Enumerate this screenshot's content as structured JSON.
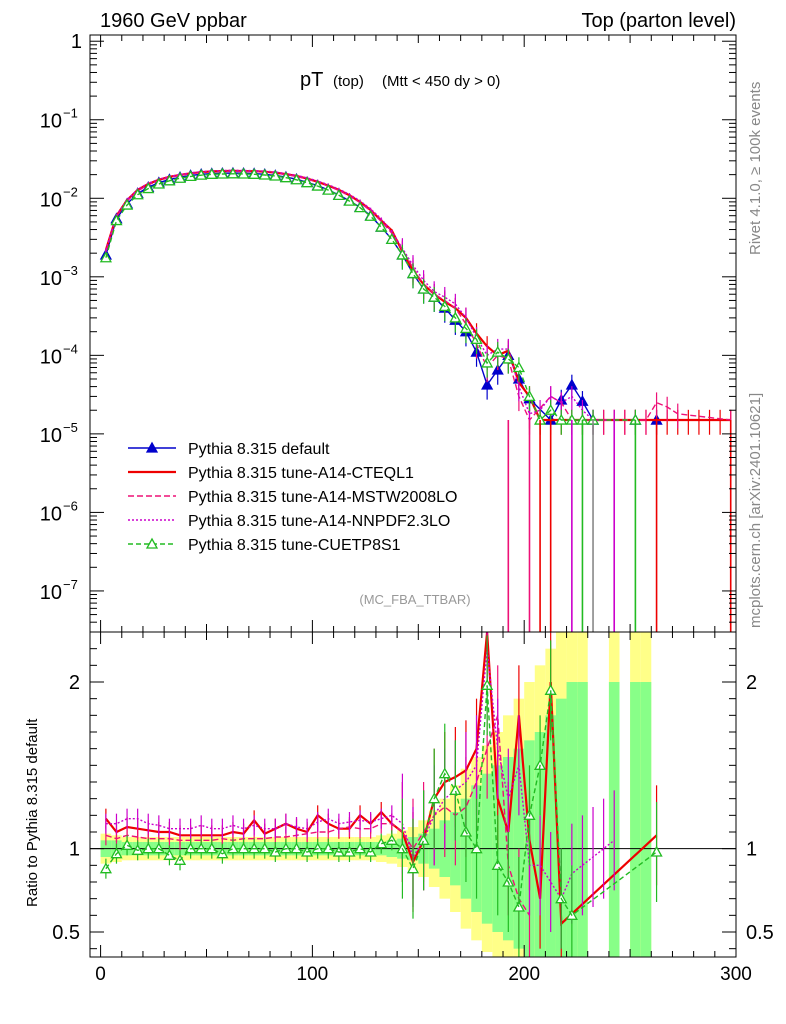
{
  "header": {
    "left": "1960 GeV ppbar",
    "right": "Top (parton level)"
  },
  "side": {
    "rivet": "Rivet 4.1.0, ≥ 100k events",
    "mcplots": "mcplots.cern.ch [arXiv:2401.10621]"
  },
  "chart_data": {
    "type": "line",
    "title_main": "pT",
    "title_sub1": "(top)",
    "title_sub2": "(Mtt < 450 dy > 0)",
    "analysis_tag": "(MC_FBA_TTBAR)",
    "xlim": [
      -5,
      300
    ],
    "xticks": [
      0,
      100,
      200,
      300
    ],
    "xtick_labels": [
      "0",
      "100",
      "200",
      "300"
    ],
    "upper": {
      "yscale": "log",
      "ylim": [
        3e-08,
        1.2
      ],
      "ytick_labels": [
        {
          "value": 1,
          "base": "1",
          "exp": ""
        },
        {
          "value": 0.1,
          "base": "10",
          "exp": "−1"
        },
        {
          "value": 0.01,
          "base": "10",
          "exp": "−2"
        },
        {
          "value": 0.001,
          "base": "10",
          "exp": "−3"
        },
        {
          "value": 0.0001,
          "base": "10",
          "exp": "−4"
        },
        {
          "value": 1e-05,
          "base": "10",
          "exp": "−5"
        },
        {
          "value": 1e-06,
          "base": "10",
          "exp": "−6"
        },
        {
          "value": 1e-07,
          "base": "10",
          "exp": "−7"
        }
      ]
    },
    "lower": {
      "ylabel": "Ratio to Pythia 8.315 default",
      "ylim": [
        0.35,
        2.3
      ],
      "yticks": [
        0.5,
        1,
        2
      ],
      "ytick_labels": [
        "0.5",
        "1",
        "2"
      ],
      "band_x": [
        0,
        5,
        10,
        15,
        20,
        25,
        30,
        35,
        40,
        45,
        50,
        55,
        60,
        65,
        70,
        75,
        80,
        85,
        90,
        95,
        100,
        105,
        110,
        115,
        120,
        125,
        130,
        135,
        140,
        145,
        150,
        155,
        160,
        165,
        170,
        175,
        180,
        185,
        190,
        195,
        200,
        205,
        210,
        215,
        220,
        225
      ],
      "band_inner": [
        0.05,
        0.05,
        0.04,
        0.04,
        0.04,
        0.04,
        0.04,
        0.04,
        0.04,
        0.04,
        0.04,
        0.04,
        0.04,
        0.04,
        0.04,
        0.04,
        0.04,
        0.04,
        0.04,
        0.04,
        0.04,
        0.04,
        0.04,
        0.04,
        0.04,
        0.04,
        0.04,
        0.05,
        0.06,
        0.07,
        0.09,
        0.12,
        0.17,
        0.22,
        0.3,
        0.38,
        0.45,
        0.5,
        0.55,
        0.6,
        0.65,
        0.7,
        0.8,
        0.9,
        1.0,
        1.0
      ],
      "band_outer": [
        0.09,
        0.08,
        0.07,
        0.07,
        0.07,
        0.07,
        0.07,
        0.07,
        0.07,
        0.07,
        0.07,
        0.07,
        0.07,
        0.07,
        0.07,
        0.07,
        0.07,
        0.07,
        0.07,
        0.07,
        0.07,
        0.07,
        0.07,
        0.07,
        0.07,
        0.07,
        0.08,
        0.09,
        0.11,
        0.13,
        0.17,
        0.23,
        0.3,
        0.38,
        0.48,
        0.55,
        0.62,
        0.7,
        0.8,
        0.9,
        1.0,
        1.1,
        1.2,
        1.3,
        1.35,
        1.4
      ],
      "band_right": [
        {
          "x0": 240,
          "x1": 245,
          "inner": 1.0,
          "outer": 1.3
        },
        {
          "x0": 250,
          "x1": 255,
          "inner": 1.0,
          "outer": 1.3
        },
        {
          "x0": 255,
          "x1": 260,
          "inner": 1.0,
          "outer": 1.3
        }
      ]
    },
    "x": [
      2.5,
      7.5,
      12.5,
      17.5,
      22.5,
      27.5,
      32.5,
      37.5,
      42.5,
      47.5,
      52.5,
      57.5,
      62.5,
      67.5,
      72.5,
      77.5,
      82.5,
      87.5,
      92.5,
      97.5,
      102.5,
      107.5,
      112.5,
      117.5,
      122.5,
      127.5,
      132.5,
      137.5,
      142.5,
      147.5,
      152.5,
      157.5,
      162.5,
      167.5,
      172.5,
      177.5,
      182.5,
      187.5,
      192.5,
      197.5,
      202.5,
      207.5,
      212.5,
      217.5,
      222.5,
      227.5,
      232.5,
      237.5,
      242.5,
      247.5,
      252.5,
      257.5,
      262.5,
      267.5,
      272.5,
      277.5,
      282.5,
      287.5,
      292.5,
      297.5
    ],
    "series": [
      {
        "name": "Pythia 8.315 default",
        "color": "#0000cc",
        "dash": "",
        "marker": "triangle-filled",
        "values": [
          0.0019,
          0.0055,
          0.0085,
          0.0115,
          0.0138,
          0.0158,
          0.0173,
          0.0185,
          0.0195,
          0.0202,
          0.0206,
          0.0208,
          0.0209,
          0.0208,
          0.0206,
          0.0202,
          0.0195,
          0.0186,
          0.0175,
          0.016,
          0.0145,
          0.0128,
          0.011,
          0.0093,
          0.0077,
          0.006,
          0.0043,
          0.003,
          0.0019,
          0.0011,
          0.0007,
          0.00055,
          0.0004,
          0.00028,
          0.0002,
          0.00011,
          4.2e-05,
          6.5e-05,
          0.0001,
          5e-05,
          2.8e-05,
          null,
          1.5e-05,
          2.7e-05,
          4.2e-05,
          2.6e-05,
          1.5e-05,
          null,
          null,
          null,
          1.5e-05,
          null,
          1.5e-05,
          null,
          null,
          null,
          null,
          null,
          null,
          null
        ],
        "ratio": null
      },
      {
        "name": "Pythia 8.315 tune-A14-CTEQL1",
        "color": "#ee0000",
        "dash": "",
        "marker": "none",
        "values": [
          0.0022,
          0.006,
          0.0095,
          0.0128,
          0.0152,
          0.0172,
          0.0188,
          0.0198,
          0.0208,
          0.0215,
          0.022,
          0.0222,
          0.0223,
          0.0222,
          0.0221,
          0.0218,
          0.0212,
          0.0203,
          0.0192,
          0.0178,
          0.0162,
          0.0145,
          0.0128,
          0.0109,
          0.009,
          0.0071,
          0.0052,
          0.0039,
          0.0021,
          0.0012,
          0.0008,
          0.0006,
          0.00048,
          0.0004,
          0.0003,
          0.00019,
          0.00013,
          0.0001,
          0.000115,
          4.5e-05,
          3e-05,
          1.5e-05,
          1.5e-05,
          1.5e-05,
          1.5e-05,
          1.5e-05,
          1.5e-05,
          1.5e-05,
          1.5e-05,
          1.5e-05,
          1.5e-05,
          1.5e-05,
          1.5e-05,
          1.5e-05,
          1.5e-05,
          1.5e-05,
          1.5e-05,
          1.5e-05,
          1.5e-05,
          1.5e-05
        ],
        "ratio": [
          1.18,
          1.1,
          1.13,
          1.12,
          1.11,
          1.1,
          1.1,
          1.08,
          1.08,
          1.08,
          1.08,
          1.08,
          1.1,
          1.09,
          1.17,
          1.09,
          1.12,
          1.15,
          1.12,
          1.1,
          1.2,
          1.15,
          1.12,
          1.12,
          1.2,
          1.15,
          1.22,
          1.15,
          1.1,
          0.92,
          1.05,
          1.3,
          1.4,
          1.43,
          1.47,
          1.6,
          2.3,
          1.3,
          1.1,
          1.8,
          1.05,
          0.7,
          2.0,
          0.55,
          null,
          null,
          null,
          null,
          null,
          null,
          null,
          null,
          1.08,
          null,
          null,
          null,
          null,
          null,
          null,
          null
        ]
      },
      {
        "name": "Pythia 8.315 tune-A14-MSTW2008LO",
        "color": "#ee1177",
        "dash": "6,3",
        "marker": "none",
        "values": [
          0.0021,
          0.0058,
          0.0092,
          0.0124,
          0.0148,
          0.0168,
          0.0184,
          0.0196,
          0.0206,
          0.0213,
          0.0218,
          0.022,
          0.0221,
          0.022,
          0.0219,
          0.0216,
          0.021,
          0.0201,
          0.019,
          0.0176,
          0.016,
          0.0143,
          0.0126,
          0.0107,
          0.0088,
          0.0069,
          0.0051,
          0.0036,
          0.0022,
          0.0013,
          0.0008,
          0.0006,
          0.0005,
          0.0004,
          0.00025,
          0.00014,
          7e-05,
          0.0001,
          9e-05,
          3e-05,
          1.5e-05,
          null,
          3e-05,
          2.5e-05,
          1.5e-05,
          1.5e-05,
          null,
          1.5e-05,
          1.5e-05,
          1.5e-05,
          1.5e-05,
          1.5e-05,
          2.5e-05,
          2.2e-05,
          1.8e-05,
          null,
          null,
          null,
          null,
          1.5e-05
        ],
        "ratio": [
          1.08,
          1.06,
          1.08,
          1.07,
          1.06,
          1.06,
          1.06,
          1.05,
          1.05,
          1.05,
          1.05,
          1.06,
          1.05,
          1.06,
          1.06,
          1.06,
          1.07,
          1.07,
          1.08,
          1.09,
          1.1,
          1.1,
          1.12,
          1.13,
          1.12,
          1.12,
          1.15,
          1.15,
          1.1,
          1.0,
          1.1,
          1.2,
          1.25,
          1.2,
          1.25,
          1.4,
          1.6,
          1.8,
          0.9,
          0.7,
          0.6,
          null,
          null,
          null,
          null,
          null,
          null,
          null,
          null,
          null,
          null,
          null,
          null,
          null,
          null,
          null,
          null,
          null,
          null,
          null
        ]
      },
      {
        "name": "Pythia 8.315 tune-A14-NNPDF2.3LO",
        "color": "#cc00cc",
        "dash": "2,2",
        "marker": "none",
        "values": [
          0.0022,
          0.0061,
          0.0096,
          0.013,
          0.0155,
          0.0175,
          0.019,
          0.0201,
          0.0211,
          0.0218,
          0.0223,
          0.0226,
          0.0227,
          0.0226,
          0.0225,
          0.0222,
          0.0216,
          0.0207,
          0.0196,
          0.0182,
          0.0166,
          0.0149,
          0.0131,
          0.0112,
          0.0093,
          0.0073,
          0.0055,
          0.0038,
          0.0023,
          0.0014,
          0.0009,
          0.00065,
          0.00055,
          0.00045,
          0.0003,
          0.00017,
          0.0001,
          0.00012,
          0.00012,
          4e-05,
          1.8e-05,
          2e-05,
          3e-05,
          2.5e-05,
          3e-05,
          2e-05,
          1.5e-05,
          null,
          1.5e-05,
          null,
          null,
          null,
          null,
          null,
          null,
          null,
          null,
          null,
          null,
          null
        ],
        "ratio": [
          1.15,
          1.15,
          1.18,
          1.18,
          1.15,
          1.14,
          1.12,
          1.12,
          1.12,
          1.14,
          1.12,
          1.12,
          1.14,
          1.12,
          1.14,
          1.12,
          1.12,
          1.15,
          1.13,
          1.12,
          1.16,
          1.18,
          1.15,
          1.16,
          1.17,
          1.16,
          1.18,
          1.2,
          1.15,
          0.95,
          1.05,
          1.2,
          1.3,
          1.35,
          1.4,
          1.5,
          2.2,
          1.6,
          1.3,
          1.5,
          0.9,
          0.9,
          0.8,
          0.7,
          0.85,
          0.9,
          0.95,
          1.0,
          1.05,
          null,
          null,
          null,
          null,
          null,
          null,
          null,
          null,
          null,
          null,
          null
        ]
      },
      {
        "name": "Pythia 8.315 tune-CUETP8S1",
        "color": "#22bb22",
        "dash": "5,3",
        "marker": "triangle-open",
        "values": [
          0.00175,
          0.0052,
          0.0082,
          0.0111,
          0.0133,
          0.0152,
          0.0167,
          0.018,
          0.019,
          0.0197,
          0.0202,
          0.0204,
          0.0205,
          0.0204,
          0.0202,
          0.0198,
          0.0192,
          0.0183,
          0.0172,
          0.0158,
          0.0143,
          0.0127,
          0.0109,
          0.0092,
          0.0076,
          0.0059,
          0.0043,
          0.003,
          0.0019,
          0.0011,
          0.0007,
          0.00055,
          0.00042,
          0.0003,
          0.00022,
          0.00016,
          8e-05,
          0.00011,
          9e-05,
          7e-05,
          3e-05,
          1.5e-05,
          2e-05,
          1.5e-05,
          1.5e-05,
          1.5e-05,
          1.5e-05,
          null,
          null,
          null,
          1.5e-05,
          null,
          null,
          null,
          null,
          null,
          null,
          null,
          null,
          null
        ],
        "ratio": [
          0.88,
          0.97,
          1.02,
          0.99,
          1.0,
          1.0,
          0.96,
          0.93,
          1.0,
          1.0,
          1.0,
          0.97,
          1.0,
          1.0,
          1.0,
          1.0,
          0.98,
          1.0,
          1.0,
          0.98,
          1.0,
          1.0,
          0.98,
          0.98,
          1.0,
          0.98,
          1.03,
          1.05,
          1.0,
          0.88,
          1.05,
          1.3,
          1.45,
          1.35,
          1.1,
          1.0,
          1.98,
          0.9,
          0.8,
          0.65,
          1.2,
          1.5,
          1.95,
          0.7,
          0.6,
          null,
          null,
          null,
          null,
          null,
          null,
          null,
          0.98,
          null,
          null,
          null,
          null,
          null,
          null,
          null
        ]
      }
    ]
  }
}
